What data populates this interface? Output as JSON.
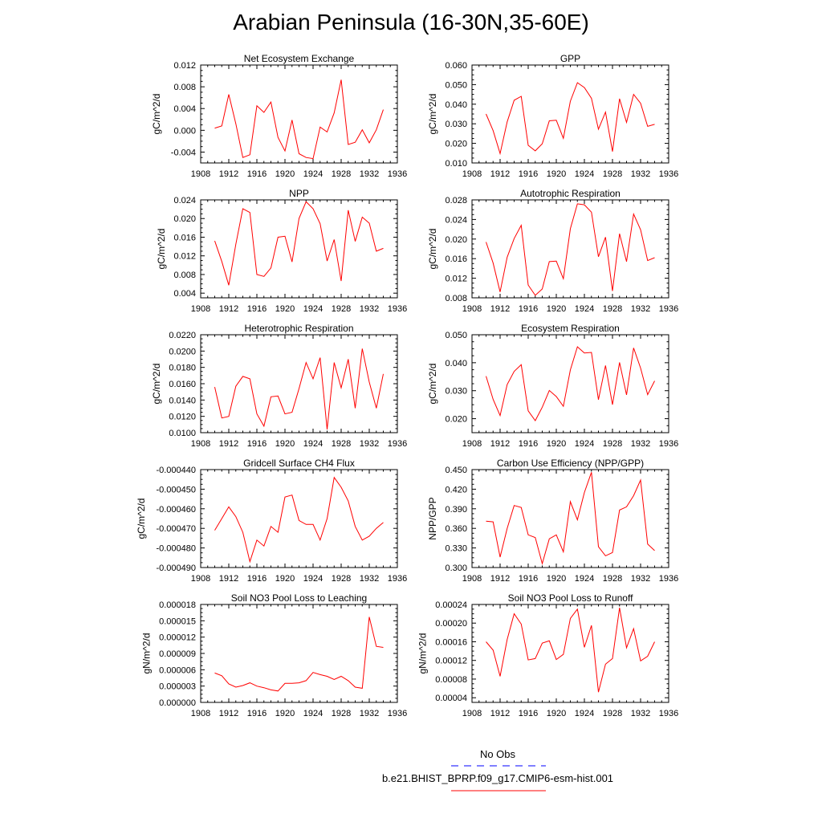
{
  "title": "Arabian Peninsula (16-30N,35-60E)",
  "colors": {
    "series": "#ff0000",
    "obs": "#0000ff"
  },
  "legend": {
    "obs_label": "No Obs",
    "model_label": "b.e21.BHIST_BPRP.f09_g17.CMIP6-esm-hist.001"
  },
  "chart_data": [
    {
      "type": "line",
      "title": "Net Ecosystem Exchange",
      "ylabel": "gC/m^2/d",
      "xlim": [
        1908,
        1936
      ],
      "xticks": [
        "1908",
        "1912",
        "1916",
        "1920",
        "1924",
        "1928",
        "1932",
        "1936"
      ],
      "ylim": [
        -0.006,
        0.012
      ],
      "yticks": [
        "-0.004",
        "0.000",
        "0.004",
        "0.008",
        "0.012"
      ],
      "x": [
        1910,
        1911,
        1912,
        1913,
        1914,
        1915,
        1916,
        1917,
        1918,
        1919,
        1920,
        1921,
        1922,
        1923,
        1924,
        1925,
        1926,
        1927,
        1928,
        1929,
        1930,
        1931,
        1932,
        1933,
        1934
      ],
      "values": [
        0.0004,
        0.0008,
        0.0066,
        0.0012,
        -0.005,
        -0.0045,
        0.0045,
        0.0033,
        0.0052,
        -0.0013,
        -0.0038,
        0.0019,
        -0.0043,
        -0.005,
        -0.0052,
        0.0006,
        -0.0003,
        0.0032,
        0.0093,
        -0.0026,
        -0.0022,
        0.0001,
        -0.0023,
        0.0001,
        0.0038
      ]
    },
    {
      "type": "line",
      "title": "GPP",
      "ylabel": "gC/m^2/d",
      "xlim": [
        1908,
        1936
      ],
      "xticks": [
        "1908",
        "1912",
        "1916",
        "1920",
        "1924",
        "1928",
        "1932",
        "1936"
      ],
      "ylim": [
        0.01,
        0.06
      ],
      "yticks": [
        "0.010",
        "0.020",
        "0.030",
        "0.040",
        "0.050",
        "0.060"
      ],
      "x": [
        1910,
        1911,
        1912,
        1913,
        1914,
        1915,
        1916,
        1917,
        1918,
        1919,
        1920,
        1921,
        1922,
        1923,
        1924,
        1925,
        1926,
        1927,
        1928,
        1929,
        1930,
        1931,
        1932,
        1933,
        1934
      ],
      "values": [
        0.035,
        0.0265,
        0.0148,
        0.031,
        0.042,
        0.044,
        0.019,
        0.0162,
        0.0198,
        0.0315,
        0.0318,
        0.0226,
        0.0415,
        0.051,
        0.0485,
        0.043,
        0.0272,
        0.036,
        0.0158,
        0.0428,
        0.0307,
        0.045,
        0.0405,
        0.0287,
        0.0297
      ]
    },
    {
      "type": "line",
      "title": "NPP",
      "ylabel": "gC/m^2/d",
      "xlim": [
        1908,
        1936
      ],
      "xticks": [
        "1908",
        "1912",
        "1916",
        "1920",
        "1924",
        "1928",
        "1932",
        "1936"
      ],
      "ylim": [
        0.003,
        0.024
      ],
      "yticks": [
        "0.004",
        "0.008",
        "0.012",
        "0.016",
        "0.020",
        "0.024"
      ],
      "x": [
        1910,
        1911,
        1912,
        1913,
        1914,
        1915,
        1916,
        1917,
        1918,
        1919,
        1920,
        1921,
        1922,
        1923,
        1924,
        1925,
        1926,
        1927,
        1928,
        1929,
        1930,
        1931,
        1932,
        1933,
        1934
      ],
      "values": [
        0.0152,
        0.0108,
        0.0057,
        0.0145,
        0.0221,
        0.0213,
        0.008,
        0.0076,
        0.0094,
        0.016,
        0.0162,
        0.0107,
        0.02,
        0.0236,
        0.0221,
        0.0189,
        0.0109,
        0.0155,
        0.0066,
        0.0218,
        0.0151,
        0.0203,
        0.019,
        0.013,
        0.0136
      ]
    },
    {
      "type": "line",
      "title": "Autotrophic Respiration",
      "ylabel": "gC/m^2/d",
      "xlim": [
        1908,
        1936
      ],
      "xticks": [
        "1908",
        "1912",
        "1916",
        "1920",
        "1924",
        "1928",
        "1932",
        "1936"
      ],
      "ylim": [
        0.008,
        0.028
      ],
      "yticks": [
        "0.008",
        "0.012",
        "0.016",
        "0.020",
        "0.024",
        "0.028"
      ],
      "x": [
        1910,
        1911,
        1912,
        1913,
        1914,
        1915,
        1916,
        1917,
        1918,
        1919,
        1920,
        1921,
        1922,
        1923,
        1924,
        1925,
        1926,
        1927,
        1928,
        1929,
        1930,
        1931,
        1932,
        1933,
        1934
      ],
      "values": [
        0.0194,
        0.0151,
        0.0092,
        0.0163,
        0.0201,
        0.0228,
        0.0106,
        0.0085,
        0.0098,
        0.0154,
        0.0155,
        0.0119,
        0.0221,
        0.0272,
        0.027,
        0.0255,
        0.0164,
        0.0204,
        0.0094,
        0.0211,
        0.0154,
        0.0251,
        0.0219,
        0.0156,
        0.0162
      ]
    },
    {
      "type": "line",
      "title": "Heterotrophic Respiration",
      "ylabel": "gC/m^2/d",
      "xlim": [
        1908,
        1936
      ],
      "xticks": [
        "1908",
        "1912",
        "1916",
        "1920",
        "1924",
        "1928",
        "1932",
        "1936"
      ],
      "ylim": [
        0.01,
        0.022
      ],
      "yticks": [
        "0.0100",
        "0.0120",
        "0.0140",
        "0.0160",
        "0.0180",
        "0.0200",
        "0.0220"
      ],
      "x": [
        1910,
        1911,
        1912,
        1913,
        1914,
        1915,
        1916,
        1917,
        1918,
        1919,
        1920,
        1921,
        1922,
        1923,
        1924,
        1925,
        1926,
        1927,
        1928,
        1929,
        1930,
        1931,
        1932,
        1933,
        1934
      ],
      "values": [
        0.0156,
        0.0118,
        0.012,
        0.0157,
        0.0169,
        0.0166,
        0.0123,
        0.0108,
        0.0144,
        0.0145,
        0.0123,
        0.0125,
        0.0154,
        0.0186,
        0.0166,
        0.0192,
        0.0104,
        0.0186,
        0.0155,
        0.019,
        0.013,
        0.0203,
        0.0162,
        0.013,
        0.0172
      ]
    },
    {
      "type": "line",
      "title": "Ecosystem Respiration",
      "ylabel": "gC/m^2/d",
      "xlim": [
        1908,
        1936
      ],
      "xticks": [
        "1908",
        "1912",
        "1916",
        "1920",
        "1924",
        "1928",
        "1932",
        "1936"
      ],
      "ylim": [
        0.015,
        0.05
      ],
      "yticks": [
        "0.020",
        "0.030",
        "0.040",
        "0.050"
      ],
      "x": [
        1910,
        1911,
        1912,
        1913,
        1914,
        1915,
        1916,
        1917,
        1918,
        1919,
        1920,
        1921,
        1922,
        1923,
        1924,
        1925,
        1926,
        1927,
        1928,
        1929,
        1930,
        1931,
        1932,
        1933,
        1934
      ],
      "values": [
        0.0352,
        0.0269,
        0.0211,
        0.0322,
        0.0369,
        0.0393,
        0.0228,
        0.0193,
        0.0241,
        0.0301,
        0.0279,
        0.0244,
        0.0374,
        0.0457,
        0.0435,
        0.0437,
        0.0268,
        0.039,
        0.025,
        0.0401,
        0.0285,
        0.0453,
        0.0381,
        0.0286,
        0.0335
      ]
    },
    {
      "type": "line",
      "title": "Gridcell Surface CH4 Flux",
      "ylabel": "gC/m^2/d",
      "xlim": [
        1908,
        1936
      ],
      "xticks": [
        "1908",
        "1912",
        "1916",
        "1920",
        "1924",
        "1928",
        "1932",
        "1936"
      ],
      "ylim": [
        -0.00049,
        -0.00044
      ],
      "yticks": [
        "-0.000490",
        "-0.000480",
        "-0.000470",
        "-0.000460",
        "-0.000450",
        "-0.000440"
      ],
      "x": [
        1910,
        1911,
        1912,
        1913,
        1914,
        1915,
        1916,
        1917,
        1918,
        1919,
        1920,
        1921,
        1922,
        1923,
        1924,
        1925,
        1926,
        1927,
        1928,
        1929,
        1930,
        1931,
        1932,
        1933,
        1934
      ],
      "values": [
        -0.000471,
        -0.000465,
        -0.000459,
        -0.000464,
        -0.000472,
        -0.000487,
        -0.000476,
        -0.000479,
        -0.000469,
        -0.000472,
        -0.000454,
        -0.000453,
        -0.000466,
        -0.000468,
        -0.000468,
        -0.000476,
        -0.000465,
        -0.000444,
        -0.000449,
        -0.000456,
        -0.000469,
        -0.000476,
        -0.000474,
        -0.00047,
        -0.000467
      ]
    },
    {
      "type": "line",
      "title": "Carbon Use Efficiency (NPP/GPP)",
      "ylabel": "NPP/GPP",
      "xlim": [
        1908,
        1936
      ],
      "xticks": [
        "1908",
        "1912",
        "1916",
        "1920",
        "1924",
        "1928",
        "1932",
        "1936"
      ],
      "ylim": [
        0.3,
        0.45
      ],
      "yticks": [
        "0.300",
        "0.330",
        "0.360",
        "0.390",
        "0.420",
        "0.450"
      ],
      "x": [
        1910,
        1911,
        1912,
        1913,
        1914,
        1915,
        1916,
        1917,
        1918,
        1919,
        1920,
        1921,
        1922,
        1923,
        1924,
        1925,
        1926,
        1927,
        1928,
        1929,
        1930,
        1931,
        1932,
        1933,
        1934
      ],
      "values": [
        0.371,
        0.37,
        0.316,
        0.36,
        0.395,
        0.392,
        0.35,
        0.346,
        0.306,
        0.344,
        0.35,
        0.324,
        0.401,
        0.373,
        0.415,
        0.446,
        0.332,
        0.318,
        0.323,
        0.388,
        0.393,
        0.41,
        0.434,
        0.336,
        0.326
      ]
    },
    {
      "type": "line",
      "title": "Soil NO3 Pool Loss to Leaching",
      "ylabel": "gN/m^2/d",
      "xlim": [
        1908,
        1936
      ],
      "xticks": [
        "1908",
        "1912",
        "1916",
        "1920",
        "1924",
        "1928",
        "1932",
        "1936"
      ],
      "ylim": [
        0.0,
        1.8e-05
      ],
      "yticks": [
        "0.000000",
        "0.000003",
        "0.000006",
        "0.000009",
        "0.000012",
        "0.000015",
        "0.000018"
      ],
      "x": [
        1910,
        1911,
        1912,
        1913,
        1914,
        1915,
        1916,
        1917,
        1918,
        1919,
        1920,
        1921,
        1922,
        1923,
        1924,
        1925,
        1926,
        1927,
        1928,
        1929,
        1930,
        1931,
        1932,
        1933,
        1934
      ],
      "values": [
        5.4e-06,
        4.9e-06,
        3.4e-06,
        2.8e-06,
        3.1e-06,
        3.6e-06,
        3e-06,
        2.7e-06,
        2.3e-06,
        2.1e-06,
        3.5e-06,
        3.5e-06,
        3.6e-06,
        4e-06,
        5.5e-06,
        5.1e-06,
        4.8e-06,
        4.2e-06,
        4.8e-06,
        4e-06,
        2.8e-06,
        2.6e-06,
        1.57e-05,
        1.03e-05,
        1.01e-05
      ]
    },
    {
      "type": "line",
      "title": "Soil NO3 Pool Loss to Runoff",
      "ylabel": "gN/m^2/d",
      "xlim": [
        1908,
        1936
      ],
      "xticks": [
        "1908",
        "1912",
        "1916",
        "1920",
        "1924",
        "1928",
        "1932",
        "1936"
      ],
      "ylim": [
        3e-05,
        0.00024
      ],
      "yticks": [
        "0.00004",
        "0.00008",
        "0.00012",
        "0.00016",
        "0.00020",
        "0.00024"
      ],
      "x": [
        1910,
        1911,
        1912,
        1913,
        1914,
        1915,
        1916,
        1917,
        1918,
        1919,
        1920,
        1921,
        1922,
        1923,
        1924,
        1925,
        1926,
        1927,
        1928,
        1929,
        1930,
        1931,
        1932,
        1933,
        1934
      ],
      "values": [
        0.00016,
        0.000142,
        8.6e-05,
        0.000165,
        0.00022,
        0.000198,
        0.000121,
        0.000124,
        0.000157,
        0.000162,
        0.000122,
        0.000133,
        0.00021,
        0.00023,
        0.000148,
        0.000195,
        5.2e-05,
        0.000112,
        0.000124,
        0.000233,
        0.000147,
        0.000188,
        0.000119,
        0.000129,
        0.00016
      ]
    }
  ]
}
